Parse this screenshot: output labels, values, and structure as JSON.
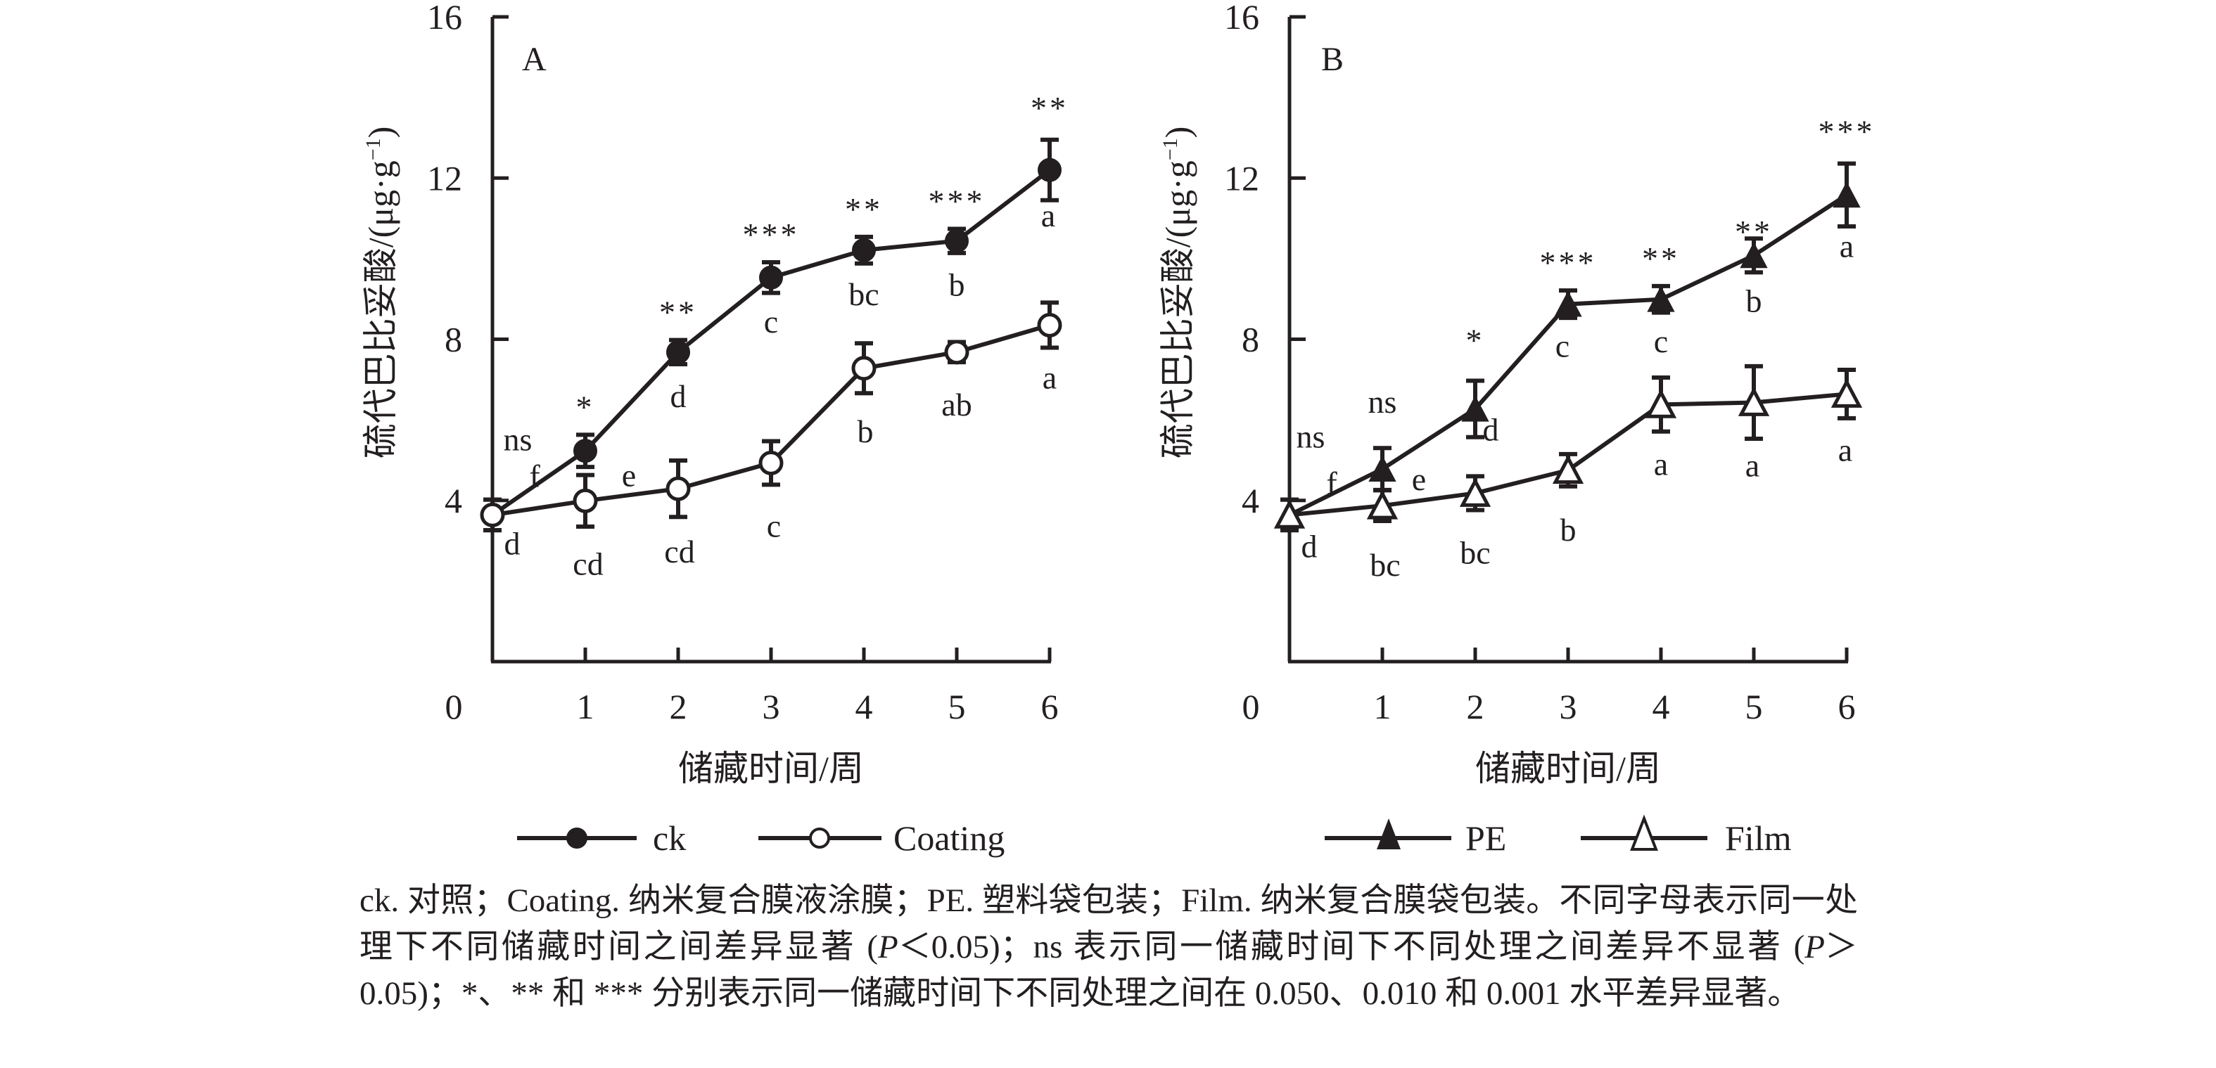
{
  "chart_data": [
    {
      "type": "line",
      "panel": "A",
      "title": "",
      "xlabel": "储藏时间/周",
      "ylabel": "硫代巴比妥酸/(μg·g⁻¹)",
      "ylabel_parts": {
        "main": "硫代巴比妥酸/(μg·g",
        "sup": "−1",
        "close": ")"
      },
      "x": [
        0,
        1,
        2,
        3,
        4,
        5,
        6
      ],
      "xticks": [
        "0",
        "1",
        "2",
        "3",
        "4",
        "5",
        "6"
      ],
      "yticks": [
        "4",
        "8",
        "12",
        "16"
      ],
      "ytick_values": [
        4,
        8,
        12,
        16
      ],
      "ylim": [
        0,
        16
      ],
      "xlim": [
        0,
        6
      ],
      "grid": false,
      "series": [
        {
          "name": "ck",
          "marker": "filled-circle",
          "values": [
            3.64,
            5.23,
            7.68,
            9.53,
            10.21,
            10.44,
            12.2
          ],
          "errors": [
            0.38,
            0.4,
            0.3,
            0.38,
            0.33,
            0.3,
            0.75
          ],
          "letters": [
            "f",
            "e",
            "d",
            "c",
            "bc",
            "b",
            "a"
          ]
        },
        {
          "name": "Coating",
          "marker": "open-circle",
          "values": [
            3.64,
            3.99,
            4.29,
            4.93,
            7.28,
            7.68,
            8.35
          ],
          "errors": [
            0.38,
            0.64,
            0.7,
            0.54,
            0.62,
            0.25,
            0.56
          ],
          "letters": [
            "d",
            "cd",
            "cd",
            "c",
            "b",
            "ab",
            "a"
          ]
        }
      ],
      "significance": [
        "ns",
        "*",
        "**",
        "***",
        "**",
        "***",
        "**"
      ],
      "legend": [
        "ck",
        "Coating"
      ],
      "legend_position": "bottom"
    },
    {
      "type": "line",
      "panel": "B",
      "title": "",
      "xlabel": "储藏时间/周",
      "ylabel": "硫代巴比妥酸/(μg·g⁻¹)",
      "ylabel_parts": {
        "main": "硫代巴比妥酸/(μg·g",
        "sup": "−1",
        "close": ")"
      },
      "x": [
        0,
        1,
        2,
        3,
        4,
        5,
        6
      ],
      "xticks": [
        "0",
        "1",
        "2",
        "3",
        "4",
        "5",
        "6"
      ],
      "yticks": [
        "4",
        "8",
        "12",
        "16"
      ],
      "ytick_values": [
        4,
        8,
        12,
        16
      ],
      "ylim": [
        0,
        16
      ],
      "xlim": [
        0,
        6
      ],
      "grid": false,
      "series": [
        {
          "name": "PE",
          "marker": "filled-triangle",
          "values": [
            3.64,
            4.78,
            6.27,
            8.87,
            8.99,
            10.08,
            11.58
          ],
          "errors": [
            0.38,
            0.52,
            0.7,
            0.34,
            0.33,
            0.42,
            0.78
          ],
          "letters": [
            "f",
            "e",
            "d",
            "c",
            "c",
            "b",
            "a"
          ]
        },
        {
          "name": "Film",
          "marker": "open-triangle",
          "values": [
            3.64,
            3.87,
            4.18,
            4.75,
            6.38,
            6.43,
            6.64
          ],
          "errors": [
            0.38,
            0.38,
            0.42,
            0.4,
            0.67,
            0.9,
            0.6
          ],
          "letters": [
            "d",
            "bc",
            "bc",
            "b",
            "a",
            "a",
            "a"
          ]
        }
      ],
      "significance": [
        "ns",
        "ns",
        "*",
        "***",
        "**",
        "**",
        "***"
      ],
      "legend": [
        "PE",
        "Film"
      ],
      "legend_position": "bottom"
    }
  ],
  "caption": {
    "line1": "ck. 对照；Coating. 纳米复合膜液涂膜；PE. 塑料袋包装；Film. 纳米复合膜袋包装。不同字母表示同一处理下不同储藏时间之间差异显著 (",
    "p1": "P",
    "line2": "＜0.05)；ns 表示同一储藏时间下不同处理之间差异不显著 (",
    "p2": "P",
    "line3": "＞0.05)；*、** 和 *** 分别表示同一储藏时间下不同处理之间在 0.050、0.010 和 0.001 水平差异显著。"
  },
  "colors": {
    "ink": "#231f20",
    "background": "#ffffff"
  }
}
